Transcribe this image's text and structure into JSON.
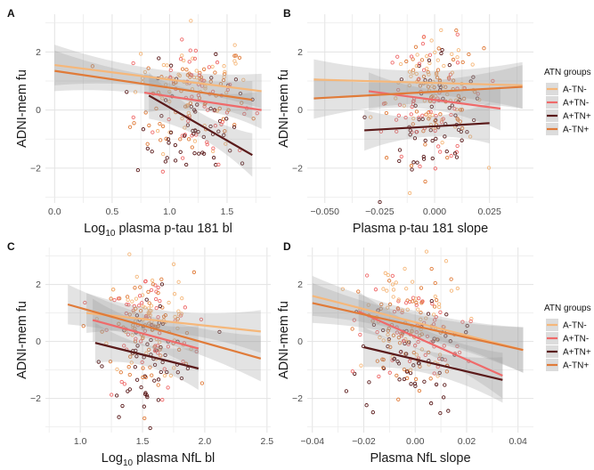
{
  "figure": {
    "panels": [
      "A",
      "B",
      "C",
      "D"
    ],
    "legend_title": "ATN groups"
  },
  "colors": {
    "A-TN-": "#f5b77a",
    "A+TN-": "#ef6a6a",
    "A+TN+": "#5a1a1a",
    "A-TN+": "#e07b39",
    "ribbon": "#9a9a9a"
  },
  "chart_data": [
    {
      "type": "scatter",
      "panel": "A",
      "xlabel": "Log10 plasma p-tau 181 bl",
      "xlabel_base": "Log",
      "xlabel_sub": "10",
      "xlabel_rest": " plasma p-tau 181 bl",
      "ylabel": "ADNI-mem fu",
      "xlim": [
        -0.08,
        1.88
      ],
      "ylim": [
        -3.2,
        3.3
      ],
      "xticks": [
        0.0,
        0.5,
        1.0,
        1.5
      ],
      "xtick_labels": [
        "0.0",
        "0.5",
        "1.0",
        "1.5"
      ],
      "yticks": [
        -2,
        0,
        2
      ],
      "ytick_labels": [
        "−2",
        "0",
        "2"
      ],
      "grid": true,
      "point_cloud": {
        "x_center": 1.2,
        "x_spread": 0.25,
        "y_center": 0.3,
        "y_spread": 1.05
      },
      "series": [
        {
          "name": "A-TN-",
          "x": [
            0.0,
            1.8
          ],
          "y": [
            1.55,
            0.65
          ],
          "ci": [
            0.45,
            0.35
          ]
        },
        {
          "name": "A+TN-",
          "x": [
            0.78,
            1.8
          ],
          "y": [
            0.6,
            0.0
          ],
          "ci": [
            0.45,
            0.4
          ]
        },
        {
          "name": "A+TN+",
          "x": [
            0.82,
            1.72
          ],
          "y": [
            0.5,
            -1.55
          ],
          "ci": [
            0.55,
            0.5
          ]
        },
        {
          "name": "A-TN+",
          "x": [
            0.0,
            1.72
          ],
          "y": [
            1.35,
            0.35
          ],
          "ci": [
            0.45,
            0.4
          ]
        }
      ]
    },
    {
      "type": "scatter",
      "panel": "B",
      "xlabel": "Plasma p-tau 181 slope",
      "ylabel": "ADNI-mem fu",
      "xlim": [
        -0.058,
        0.045
      ],
      "ylim": [
        -3.2,
        3.3
      ],
      "xticks": [
        -0.05,
        -0.025,
        0.0,
        0.025
      ],
      "xtick_labels": [
        "−0.050",
        "−0.025",
        "0.000",
        "0.025"
      ],
      "yticks": [
        -2,
        0,
        2
      ],
      "ytick_labels": [
        "−2",
        "0",
        "2"
      ],
      "grid": true,
      "point_cloud": {
        "x_center": 0.0,
        "x_spread": 0.011,
        "y_center": 0.3,
        "y_spread": 1.05
      },
      "series": [
        {
          "name": "A-TN-",
          "x": [
            -0.055,
            0.04
          ],
          "y": [
            1.05,
            0.85
          ],
          "ci": [
            0.45,
            0.55
          ]
        },
        {
          "name": "A+TN-",
          "x": [
            -0.03,
            0.03
          ],
          "y": [
            0.65,
            0.05
          ],
          "ci": [
            0.4,
            0.5
          ]
        },
        {
          "name": "A+TN+",
          "x": [
            -0.032,
            0.025
          ],
          "y": [
            -0.7,
            -0.45
          ],
          "ci": [
            0.45,
            0.45
          ]
        },
        {
          "name": "A-TN+",
          "x": [
            -0.055,
            0.04
          ],
          "y": [
            0.4,
            0.8
          ],
          "ci": [
            0.45,
            0.5
          ]
        }
      ]
    },
    {
      "type": "scatter",
      "panel": "C",
      "xlabel": "Log10 plasma NfL bl",
      "xlabel_base": "Log",
      "xlabel_sub": "10",
      "xlabel_rest": " plasma NfL bl",
      "ylabel": "ADNI-mem fu",
      "xlim": [
        0.72,
        2.53
      ],
      "ylim": [
        -3.2,
        3.3
      ],
      "xticks": [
        1.0,
        1.5,
        2.0,
        2.5
      ],
      "xtick_labels": [
        "1.0",
        "1.5",
        "2.0",
        "2.5"
      ],
      "yticks": [
        -2,
        0,
        2
      ],
      "ytick_labels": [
        "−2",
        "0",
        "2"
      ],
      "grid": true,
      "point_cloud": {
        "x_center": 1.55,
        "x_spread": 0.18,
        "y_center": 0.3,
        "y_spread": 1.05
      },
      "series": [
        {
          "name": "A-TN-",
          "x": [
            1.05,
            2.45
          ],
          "y": [
            1.0,
            0.35
          ],
          "ci": [
            0.45,
            0.5
          ]
        },
        {
          "name": "A+TN-",
          "x": [
            1.1,
            1.95
          ],
          "y": [
            0.75,
            -0.25
          ],
          "ci": [
            0.5,
            0.55
          ]
        },
        {
          "name": "A+TN+",
          "x": [
            1.12,
            1.95
          ],
          "y": [
            -0.05,
            -0.95
          ],
          "ci": [
            0.45,
            0.5
          ]
        },
        {
          "name": "A-TN+",
          "x": [
            0.9,
            2.45
          ],
          "y": [
            1.3,
            -0.6
          ],
          "ci": [
            0.45,
            0.55
          ]
        }
      ]
    },
    {
      "type": "scatter",
      "panel": "D",
      "xlabel": "Plasma NfL slope",
      "ylabel": "ADNI-mem fu",
      "xlim": [
        -0.042,
        0.046
      ],
      "ylim": [
        -3.2,
        3.3
      ],
      "xticks": [
        -0.04,
        -0.02,
        0.0,
        0.02,
        0.04
      ],
      "xtick_labels": [
        "−0.04",
        "−0.02",
        "0.00",
        "0.02",
        "0.04"
      ],
      "yticks": [
        -2,
        0,
        2
      ],
      "ytick_labels": [
        "−2",
        "0",
        "2"
      ],
      "grid": true,
      "point_cloud": {
        "x_center": -0.002,
        "x_spread": 0.01,
        "y_center": 0.3,
        "y_spread": 1.05
      },
      "series": [
        {
          "name": "A-TN-",
          "x": [
            -0.04,
            0.042
          ],
          "y": [
            1.6,
            -0.3
          ],
          "ci": [
            0.45,
            0.55
          ]
        },
        {
          "name": "A+TN-",
          "x": [
            -0.022,
            0.034
          ],
          "y": [
            1.05,
            -1.2
          ],
          "ci": [
            0.45,
            0.55
          ]
        },
        {
          "name": "A+TN+",
          "x": [
            -0.02,
            0.034
          ],
          "y": [
            -0.2,
            -1.35
          ],
          "ci": [
            0.45,
            0.55
          ]
        },
        {
          "name": "A-TN+",
          "x": [
            -0.04,
            0.042
          ],
          "y": [
            1.35,
            -0.3
          ],
          "ci": [
            0.45,
            0.55
          ]
        }
      ]
    }
  ],
  "legend": {
    "title": "ATN groups",
    "entries": [
      "A-TN-",
      "A+TN-",
      "A+TN+",
      "A-TN+"
    ]
  }
}
